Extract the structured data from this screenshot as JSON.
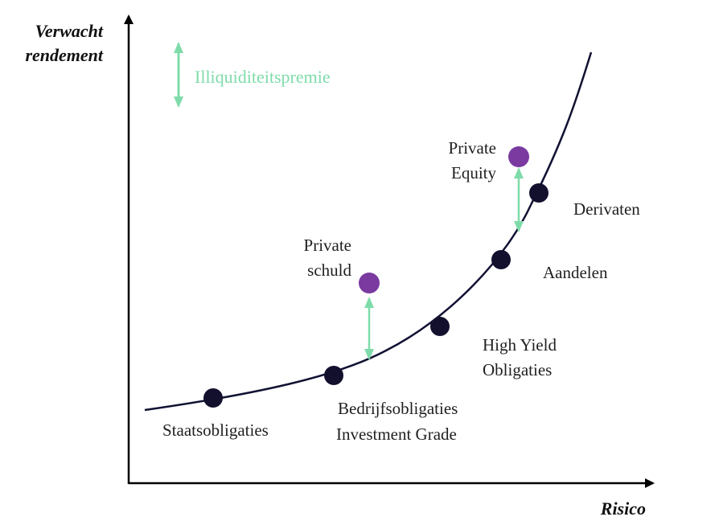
{
  "colors": {
    "axis": "#000000",
    "curve": "#111133",
    "asset_dot": "#13102e",
    "private_dot": "#7a3aa0",
    "premium": "#7fdcaa",
    "text": "#1f1f1f"
  },
  "axes": {
    "y_title_line1": "Verwacht",
    "y_title_line2": "rendement",
    "x_title": "Risico"
  },
  "legend": {
    "label": "Illiquiditeitspremie",
    "icon": "double-arrow-vertical"
  },
  "assets": [
    {
      "id": "staatsobligaties",
      "lines": [
        "Staatsobligaties"
      ]
    },
    {
      "id": "bedrijfsobligaties",
      "lines": [
        "Bedrijfsobligaties",
        "Investment Grade"
      ]
    },
    {
      "id": "high-yield",
      "lines": [
        "High Yield",
        "Obligaties"
      ]
    },
    {
      "id": "aandelen",
      "lines": [
        "Aandelen"
      ]
    },
    {
      "id": "derivaten",
      "lines": [
        "Derivaten"
      ]
    }
  ],
  "private_assets": [
    {
      "id": "private-schuld",
      "lines": [
        "Private",
        "schuld"
      ]
    },
    {
      "id": "private-equity",
      "lines": [
        "Private",
        "Equity"
      ]
    }
  ]
}
